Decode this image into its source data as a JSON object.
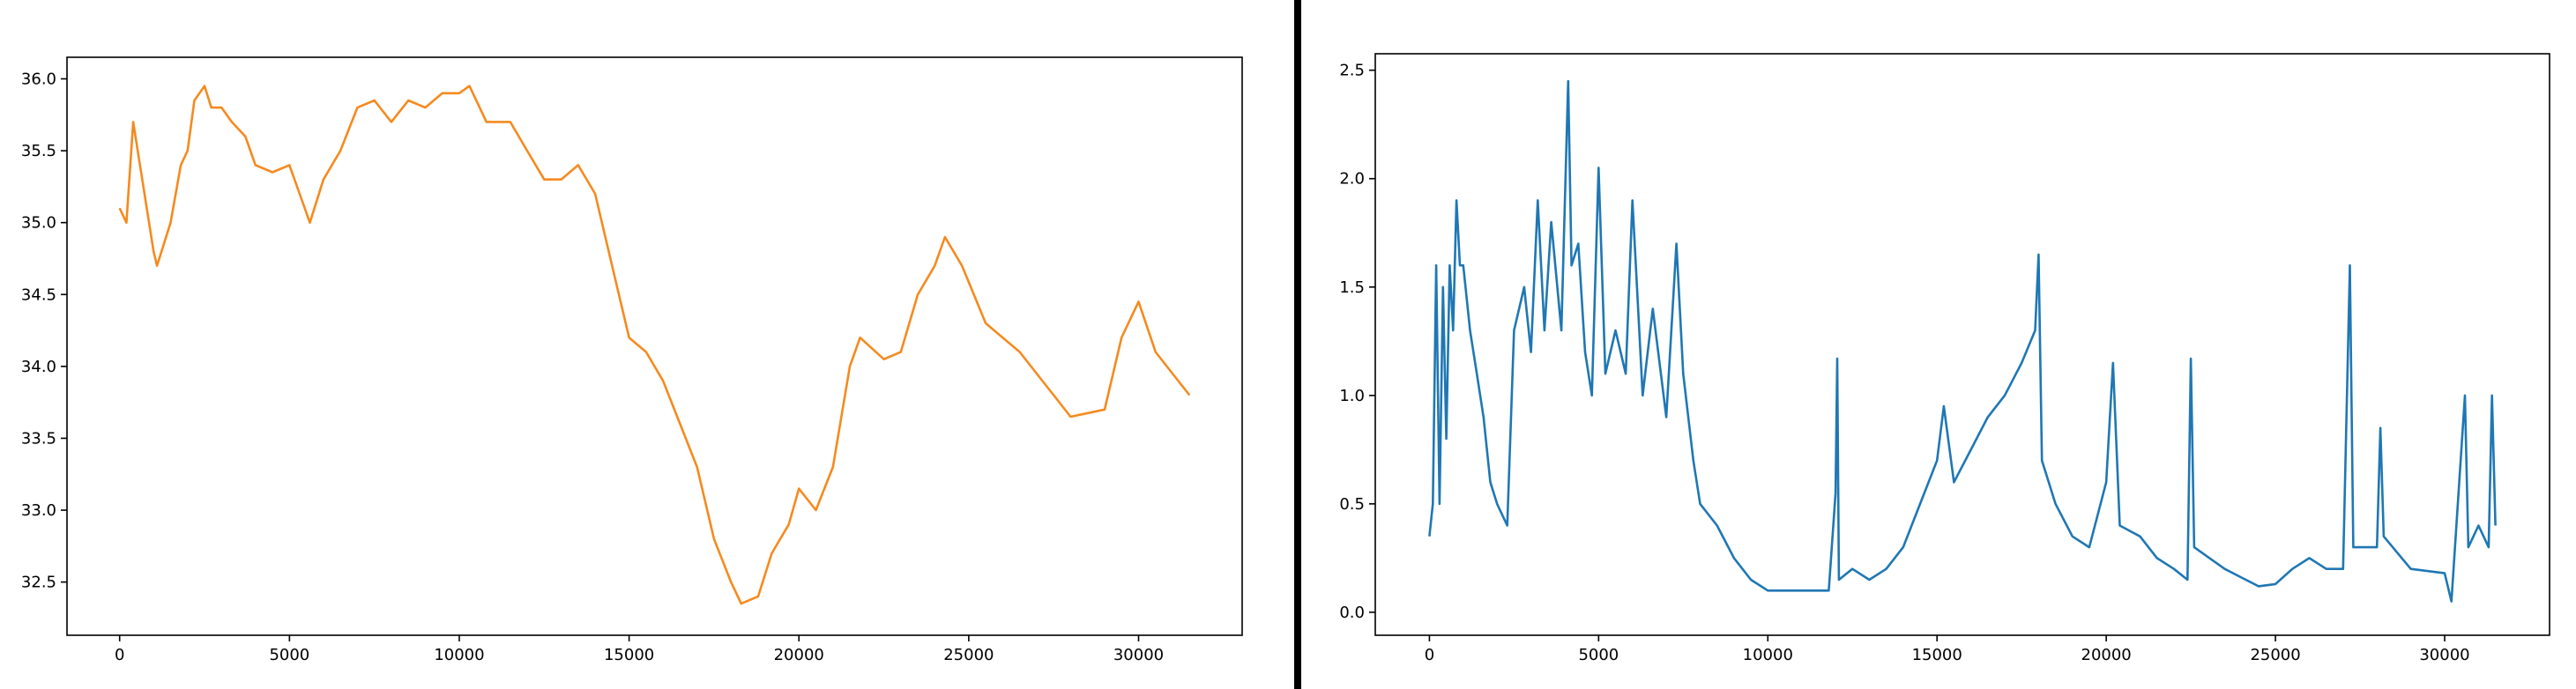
{
  "chart_data": [
    {
      "type": "line",
      "x": [
        0,
        200,
        400,
        600,
        1000,
        1100,
        1500,
        1800,
        2000,
        2200,
        2500,
        2700,
        3000,
        3300,
        3700,
        4000,
        4500,
        5000,
        5300,
        5600,
        6000,
        6500,
        7000,
        7500,
        8000,
        8500,
        9000,
        9500,
        10000,
        10300,
        10800,
        11500,
        12000,
        12500,
        13000,
        13500,
        14000,
        14500,
        15000,
        15500,
        16000,
        16500,
        17000,
        17500,
        18000,
        18300,
        18800,
        19200,
        19700,
        20000,
        20500,
        21000,
        21500,
        21800,
        22500,
        23000,
        23500,
        24000,
        24300,
        24800,
        25500,
        26500,
        27000,
        27500,
        28000,
        29000,
        29500,
        30000,
        30500,
        31000,
        31500
      ],
      "series": [
        {
          "color": "#f58a1f",
          "values": [
            35.1,
            35.0,
            35.7,
            35.4,
            34.8,
            34.7,
            35.0,
            35.4,
            35.5,
            35.85,
            35.95,
            35.8,
            35.8,
            35.7,
            35.6,
            35.4,
            35.35,
            35.4,
            35.2,
            35.0,
            35.3,
            35.5,
            35.8,
            35.85,
            35.7,
            35.85,
            35.8,
            35.9,
            35.9,
            35.95,
            35.7,
            35.7,
            35.5,
            35.3,
            35.3,
            35.4,
            35.2,
            34.7,
            34.2,
            34.1,
            33.9,
            33.6,
            33.3,
            32.8,
            32.5,
            32.35,
            32.4,
            32.7,
            32.9,
            33.15,
            33.0,
            33.3,
            34.0,
            34.2,
            34.05,
            34.1,
            34.5,
            34.7,
            34.9,
            34.7,
            34.3,
            34.1,
            33.95,
            33.8,
            33.65,
            33.7,
            34.2,
            34.45,
            34.1,
            33.95,
            33.8
          ]
        }
      ],
      "xlim": [
        -1550,
        33050
      ],
      "xticks": [
        0,
        5000,
        10000,
        15000,
        20000,
        25000,
        30000
      ],
      "ylim": [
        32.13,
        36.15
      ],
      "yticks": [
        {
          "value": 32.5,
          "label": "32.5"
        },
        {
          "value": 33,
          "label": "33.0"
        },
        33.5,
        {
          "value": 34,
          "label": "34.0"
        },
        34.5,
        {
          "value": 35,
          "label": "35.0"
        },
        35.5,
        {
          "value": 36,
          "label": "36.0"
        }
      ]
    },
    {
      "type": "line",
      "x": [
        0,
        100,
        200,
        300,
        400,
        500,
        600,
        700,
        800,
        900,
        1000,
        1200,
        1400,
        1600,
        1800,
        2000,
        2300,
        2500,
        2800,
        3000,
        3200,
        3400,
        3600,
        3900,
        4100,
        4200,
        4400,
        4600,
        4800,
        5000,
        5200,
        5500,
        5800,
        6000,
        6300,
        6600,
        7000,
        7300,
        7500,
        7800,
        8000,
        8500,
        9000,
        9500,
        10000,
        11000,
        11800,
        12000,
        12050,
        12100,
        12500,
        13000,
        13500,
        14000,
        14500,
        15000,
        15200,
        15500,
        16000,
        16500,
        17000,
        17500,
        17900,
        18000,
        18100,
        18500,
        19000,
        19500,
        20000,
        20200,
        20400,
        21000,
        21500,
        22000,
        22400,
        22500,
        22600,
        23500,
        24500,
        25000,
        25500,
        26000,
        26500,
        27000,
        27200,
        27300,
        28000,
        28100,
        28200,
        29000,
        30000,
        30200,
        30600,
        30700,
        31000,
        31300,
        31400,
        31500
      ],
      "series": [
        {
          "color": "#1f77b4",
          "values": [
            0.35,
            0.5,
            1.6,
            0.5,
            1.5,
            0.8,
            1.6,
            1.3,
            1.9,
            1.6,
            1.6,
            1.3,
            1.1,
            0.9,
            0.6,
            0.5,
            0.4,
            1.3,
            1.5,
            1.2,
            1.9,
            1.3,
            1.8,
            1.3,
            2.45,
            1.6,
            1.7,
            1.2,
            1.0,
            2.05,
            1.1,
            1.3,
            1.1,
            1.9,
            1.0,
            1.4,
            0.9,
            1.7,
            1.1,
            0.7,
            0.5,
            0.4,
            0.25,
            0.15,
            0.1,
            0.1,
            0.1,
            0.55,
            1.17,
            0.15,
            0.2,
            0.15,
            0.2,
            0.3,
            0.5,
            0.7,
            0.95,
            0.6,
            0.75,
            0.9,
            1.0,
            1.15,
            1.3,
            1.65,
            0.7,
            0.5,
            0.35,
            0.3,
            0.6,
            1.15,
            0.4,
            0.35,
            0.25,
            0.2,
            0.15,
            1.17,
            0.3,
            0.2,
            0.12,
            0.13,
            0.2,
            0.25,
            0.2,
            0.2,
            1.6,
            0.3,
            0.3,
            0.85,
            0.35,
            0.2,
            0.18,
            0.05,
            1.0,
            0.3,
            0.4,
            0.3,
            1.0,
            0.4
          ]
        }
      ],
      "xlim": [
        -1600,
        33100
      ],
      "xticks": [
        0,
        5000,
        10000,
        15000,
        20000,
        25000,
        30000
      ],
      "ylim": [
        -0.106,
        2.576
      ],
      "yticks": [
        {
          "value": 0,
          "label": "0.0"
        },
        0.5,
        {
          "value": 1,
          "label": "1.0"
        },
        1.5,
        {
          "value": 2,
          "label": "2.0"
        },
        2.5
      ]
    }
  ]
}
